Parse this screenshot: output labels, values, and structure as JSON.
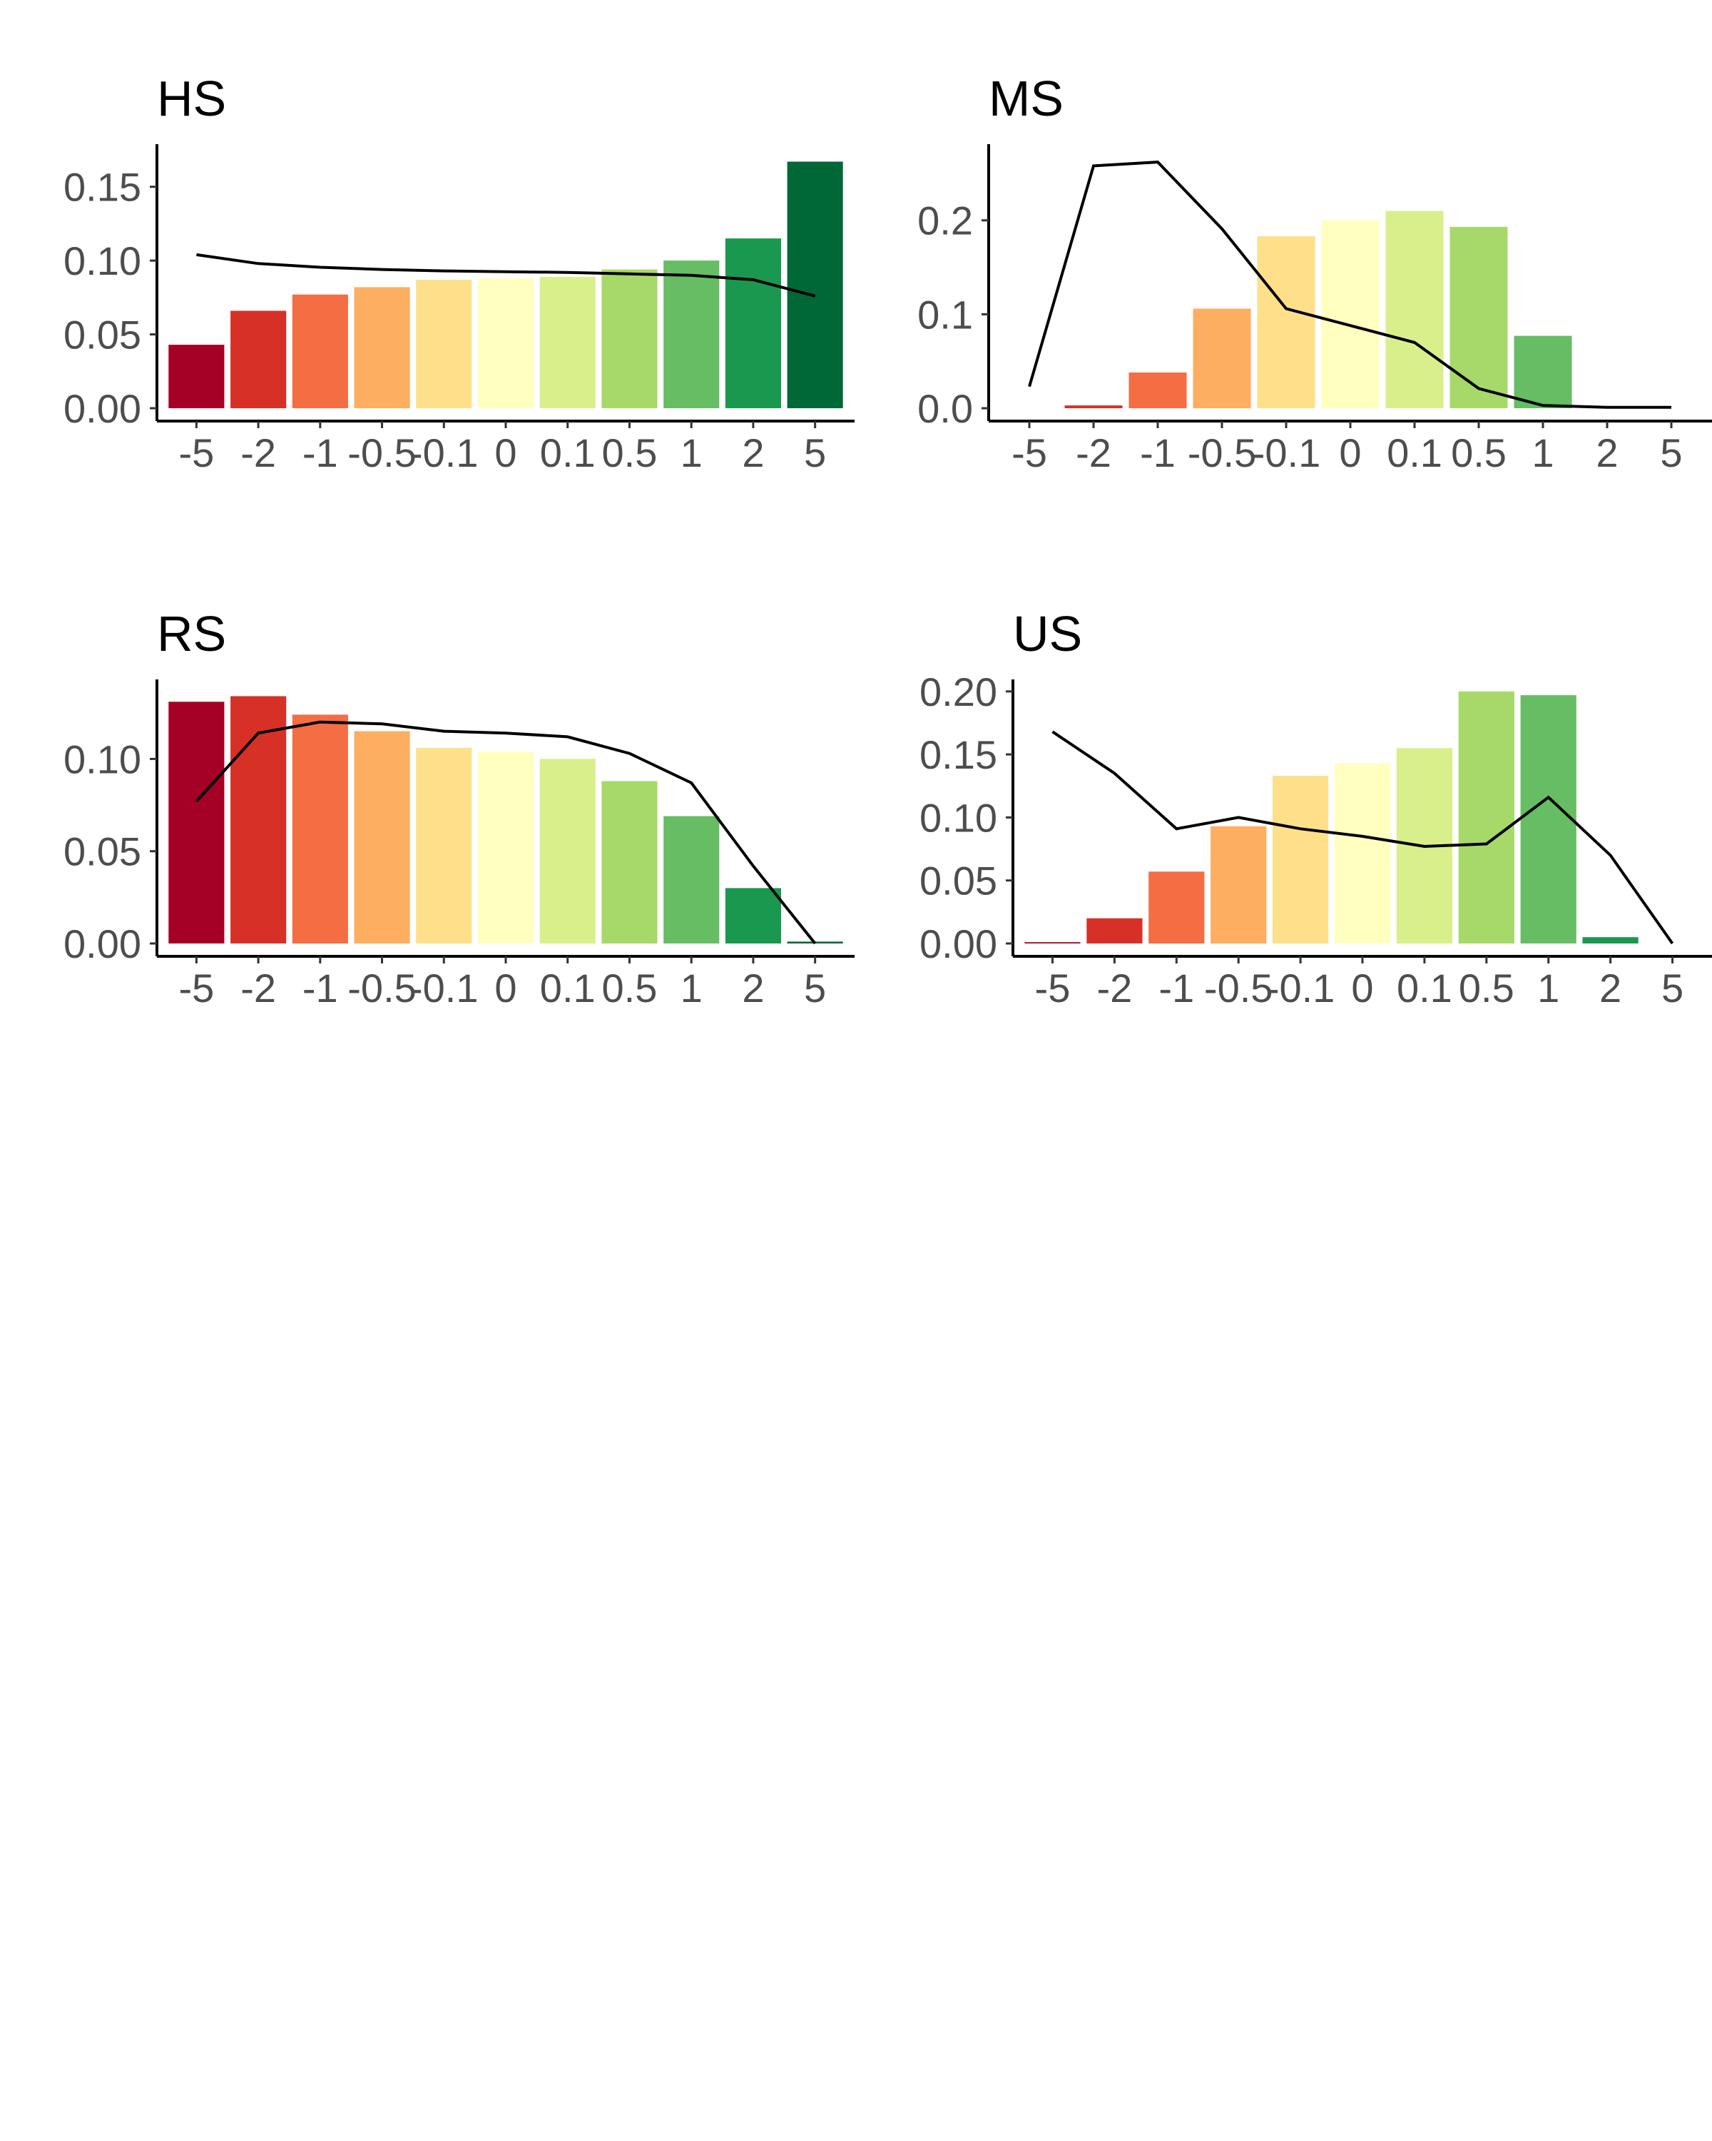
{
  "chart_data": [
    {
      "type": "bar",
      "title": "HS",
      "categories": [
        "-5",
        "-2",
        "-1",
        "-0.5",
        "-0.1",
        "0",
        "0.1",
        "0.5",
        "1",
        "2",
        "5"
      ],
      "values": [
        0.043,
        0.066,
        0.077,
        0.082,
        0.087,
        0.088,
        0.089,
        0.094,
        0.1,
        0.115,
        0.167
      ],
      "line": [
        0.104,
        0.098,
        0.0955,
        0.094,
        0.093,
        0.0925,
        0.092,
        0.091,
        0.09,
        0.087,
        0.076
      ],
      "ylim": [
        0,
        0.175
      ],
      "yticks": [
        "0.00",
        "0.05",
        "0.10",
        "0.15"
      ],
      "ytick_values": [
        0,
        0.05,
        0.1,
        0.15
      ]
    },
    {
      "type": "bar",
      "title": "MS",
      "categories": [
        "-5",
        "-2",
        "-1",
        "-0.5",
        "-0.1",
        "0",
        "0.1",
        "0.5",
        "1",
        "2",
        "5"
      ],
      "values": [
        0,
        0.003,
        0.038,
        0.106,
        0.183,
        0.2,
        0.21,
        0.193,
        0.077,
        0,
        0
      ],
      "line": [
        0.023,
        0.258,
        0.262,
        0.191,
        0.106,
        0.088,
        0.07,
        0.021,
        0.003,
        0.001,
        0.001
      ],
      "ylim": [
        0,
        0.275
      ],
      "yticks": [
        "0.0",
        "0.1",
        "0.2"
      ],
      "ytick_values": [
        0,
        0.1,
        0.2
      ]
    },
    {
      "type": "bar",
      "title": "RS",
      "categories": [
        "-5",
        "-2",
        "-1",
        "-0.5",
        "-0.1",
        "0",
        "0.1",
        "0.5",
        "1",
        "2",
        "5"
      ],
      "values": [
        0.131,
        0.134,
        0.124,
        0.115,
        0.106,
        0.104,
        0.1,
        0.088,
        0.069,
        0.03,
        0.001
      ],
      "line": [
        0.077,
        0.114,
        0.12,
        0.119,
        0.115,
        0.114,
        0.112,
        0.103,
        0.087,
        0.042,
        0
      ],
      "ylim": [
        0,
        0.14
      ],
      "yticks": [
        "0.00",
        "0.05",
        "0.10"
      ],
      "ytick_values": [
        0,
        0.05,
        0.1
      ]
    },
    {
      "type": "bar",
      "title": "US",
      "categories": [
        "-5",
        "-2",
        "-1",
        "-0.5",
        "-0.1",
        "0",
        "0.1",
        "0.5",
        "1",
        "2",
        "5"
      ],
      "values": [
        0.001,
        0.02,
        0.057,
        0.093,
        0.133,
        0.143,
        0.155,
        0.2,
        0.197,
        0.005,
        0
      ],
      "line": [
        0.168,
        0.135,
        0.091,
        0.1,
        0.091,
        0.085,
        0.077,
        0.079,
        0.116,
        0.07,
        0
      ],
      "ylim": [
        0,
        0.205
      ],
      "yticks": [
        "0.00",
        "0.05",
        "0.10",
        "0.15",
        "0.20"
      ],
      "ytick_values": [
        0,
        0.05,
        0.1,
        0.15,
        0.2
      ]
    }
  ],
  "colors": [
    "#a50026",
    "#d73027",
    "#f46d43",
    "#fdae61",
    "#fee08b",
    "#ffffbf",
    "#d9ef8b",
    "#a6d96a",
    "#66bd63",
    "#1a9850",
    "#006837"
  ]
}
